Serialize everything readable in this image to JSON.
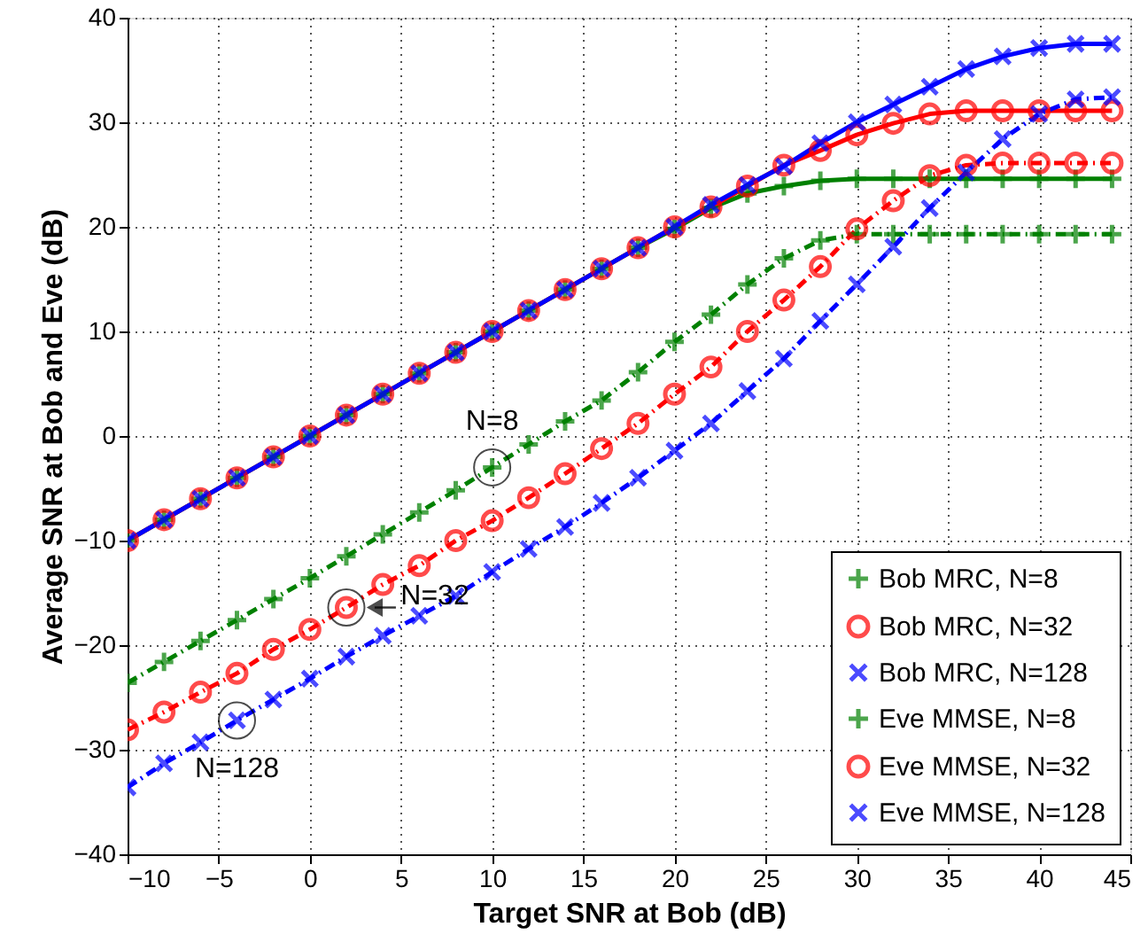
{
  "chart_data": {
    "type": "line",
    "xlabel": "Target SNR at Bob (dB)",
    "ylabel": "Average SNR at Bob and Eve (dB)",
    "x": [
      -10,
      -8,
      -6,
      -4,
      -2,
      0,
      2,
      4,
      6,
      8,
      10,
      12,
      14,
      16,
      18,
      20,
      22,
      24,
      26,
      28,
      30,
      32,
      34,
      36,
      38,
      40,
      42,
      44
    ],
    "xlim": [
      -10,
      45
    ],
    "xticks": [
      -10,
      -5,
      0,
      5,
      10,
      15,
      20,
      25,
      30,
      35,
      40,
      45
    ],
    "ylim": [
      -40,
      40
    ],
    "yticks": [
      -40,
      -30,
      -20,
      -10,
      0,
      10,
      20,
      30,
      40
    ],
    "grid": true,
    "legend": "bottom right",
    "series": [
      {
        "name": "Bob MRC, N=8",
        "color": "#008000",
        "marker": "plus",
        "line_style": "solid",
        "values": [
          -10,
          -8,
          -6,
          -4,
          -2,
          0,
          2,
          4,
          6,
          8,
          10,
          12,
          14,
          16,
          18,
          19.8,
          21.8,
          23.2,
          23.9,
          24.4,
          24.6,
          24.6,
          24.6,
          24.6,
          24.6,
          24.6,
          24.6,
          24.6
        ]
      },
      {
        "name": "Bob MRC, N=32",
        "color": "#ff0000",
        "marker": "circle",
        "line_style": "solid",
        "values": [
          -10,
          -8,
          -6,
          -4,
          -2,
          0,
          2,
          4,
          6,
          8,
          10,
          12,
          14,
          16,
          18,
          20,
          21.9,
          23.9,
          25.9,
          27.3,
          28.8,
          29.9,
          30.8,
          31.1,
          31.1,
          31.1,
          31.1,
          31.1
        ]
      },
      {
        "name": "Bob MRC, N=128",
        "color": "#0000ff",
        "marker": "x",
        "line_style": "solid",
        "values": [
          -10,
          -8,
          -6,
          -4,
          -2,
          0,
          2,
          4,
          6,
          8,
          10,
          12,
          14,
          16,
          18,
          20,
          22.1,
          24,
          25.8,
          28,
          30,
          31.7,
          33.4,
          35.1,
          36.3,
          37.1,
          37.5,
          37.5
        ]
      },
      {
        "name": "Eve MMSE, N=8",
        "color": "#008000",
        "marker": "plus",
        "line_style": "dashed",
        "values": [
          -23.6,
          -21.6,
          -19.6,
          -17.6,
          -15.6,
          -13.6,
          -11.5,
          -9.4,
          -7.3,
          -5.2,
          -3,
          -0.8,
          1.4,
          3.4,
          6.1,
          9,
          11.6,
          14.5,
          17,
          18.7,
          19.3,
          19.3,
          19.3,
          19.3,
          19.3,
          19.3,
          19.3,
          19.3
        ]
      },
      {
        "name": "Eve MMSE, N=32",
        "color": "#ff0000",
        "marker": "circle",
        "line_style": "dashed",
        "values": [
          -28.1,
          -26.4,
          -24.5,
          -22.7,
          -20.4,
          -18.5,
          -16.4,
          -14.2,
          -12.4,
          -10,
          -8.1,
          -5.9,
          -3.6,
          -1.2,
          1.2,
          4,
          6.6,
          10,
          13,
          16.2,
          19.8,
          22.5,
          24.9,
          25.9,
          26.1,
          26.1,
          26.1,
          26.1
        ]
      },
      {
        "name": "Eve MMSE, N=128",
        "color": "#0000ff",
        "marker": "x",
        "line_style": "dashed",
        "values": [
          -33.6,
          -31.3,
          -29.3,
          -27.2,
          -25.2,
          -23.2,
          -21.1,
          -19.1,
          -17.2,
          -15.3,
          -13,
          -10.8,
          -8.7,
          -6.4,
          -4,
          -1.4,
          1.2,
          4.3,
          7.4,
          11,
          14.5,
          18.1,
          21.8,
          25.2,
          28.4,
          30.8,
          32.2,
          32.4
        ]
      }
    ],
    "annotations": [
      {
        "text": "N=8",
        "x": 10,
        "y": -3
      },
      {
        "text": "N=32",
        "x": 2,
        "y": -16.4
      },
      {
        "text": "N=128",
        "x": -4,
        "y": -27.2
      }
    ]
  }
}
